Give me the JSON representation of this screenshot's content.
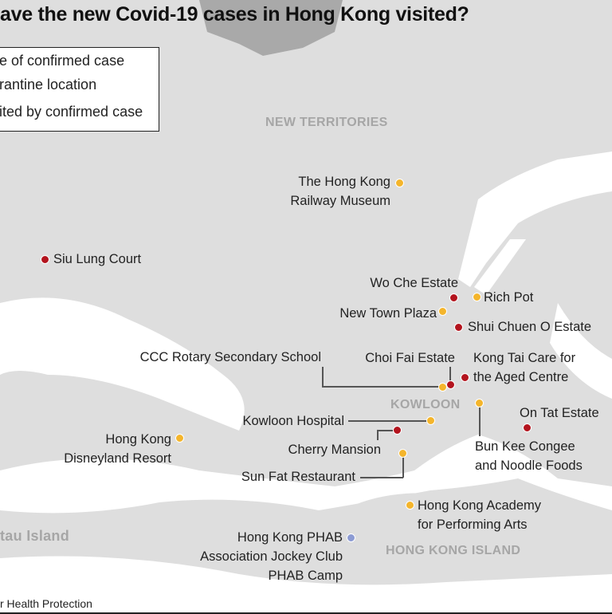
{
  "title": "ave the new Covid-19 cases in Hong Kong visited?",
  "legend": {
    "items": [
      {
        "label": "e of confirmed case",
        "type": "residence",
        "color": "#b3141e"
      },
      {
        "label": "rantine location",
        "type": "quarantine",
        "color": "#8c9bd3"
      },
      {
        "label": "ited by confirmed case",
        "type": "visited",
        "color": "#f4b52c"
      }
    ]
  },
  "regions": [
    "NEW TERRITORIES",
    "KOWLOON",
    "HONG KONG ISLAND",
    "tau Island"
  ],
  "colors": {
    "residence": "#b3141e",
    "visited": "#f4b52c",
    "quarantine": "#8c9bd3",
    "land": "#dedede",
    "water": "#ffffff"
  },
  "places": [
    {
      "name": [
        "The Hong Kong",
        "Railway Museum"
      ],
      "type": "visited"
    },
    {
      "name": [
        "Siu Lung Court"
      ],
      "type": "residence"
    },
    {
      "name": [
        "Wo Che Estate"
      ],
      "type": "residence"
    },
    {
      "name": [
        "Rich Pot"
      ],
      "type": "visited"
    },
    {
      "name": [
        "New Town Plaza"
      ],
      "type": "visited"
    },
    {
      "name": [
        "Shui Chuen O Estate"
      ],
      "type": "residence"
    },
    {
      "name": [
        "CCC Rotary Secondary School"
      ],
      "type": "visited"
    },
    {
      "name": [
        "Choi Fai Estate"
      ],
      "type": "residence"
    },
    {
      "name": [
        "Kong Tai Care for",
        "the Aged Centre"
      ],
      "type": "residence"
    },
    {
      "name": [
        "Bun Kee Congee",
        "and Noodle Foods"
      ],
      "type": "visited"
    },
    {
      "name": [
        "On Tat Estate"
      ],
      "type": "residence"
    },
    {
      "name": [
        "Kowloon Hospital"
      ],
      "type": "visited"
    },
    {
      "name": [
        "Cherry Mansion"
      ],
      "type": "residence"
    },
    {
      "name": [
        "Sun Fat Restaurant"
      ],
      "type": "visited"
    },
    {
      "name": [
        "Hong Kong Academy",
        "for Performing Arts"
      ],
      "type": "visited"
    },
    {
      "name": [
        "Hong Kong",
        "Disneyland Resort"
      ],
      "type": "visited"
    },
    {
      "name": [
        "Hong Kong PHAB",
        "Association Jockey Club",
        "PHAB Camp"
      ],
      "type": "quarantine"
    }
  ],
  "source": "r Health Protection"
}
